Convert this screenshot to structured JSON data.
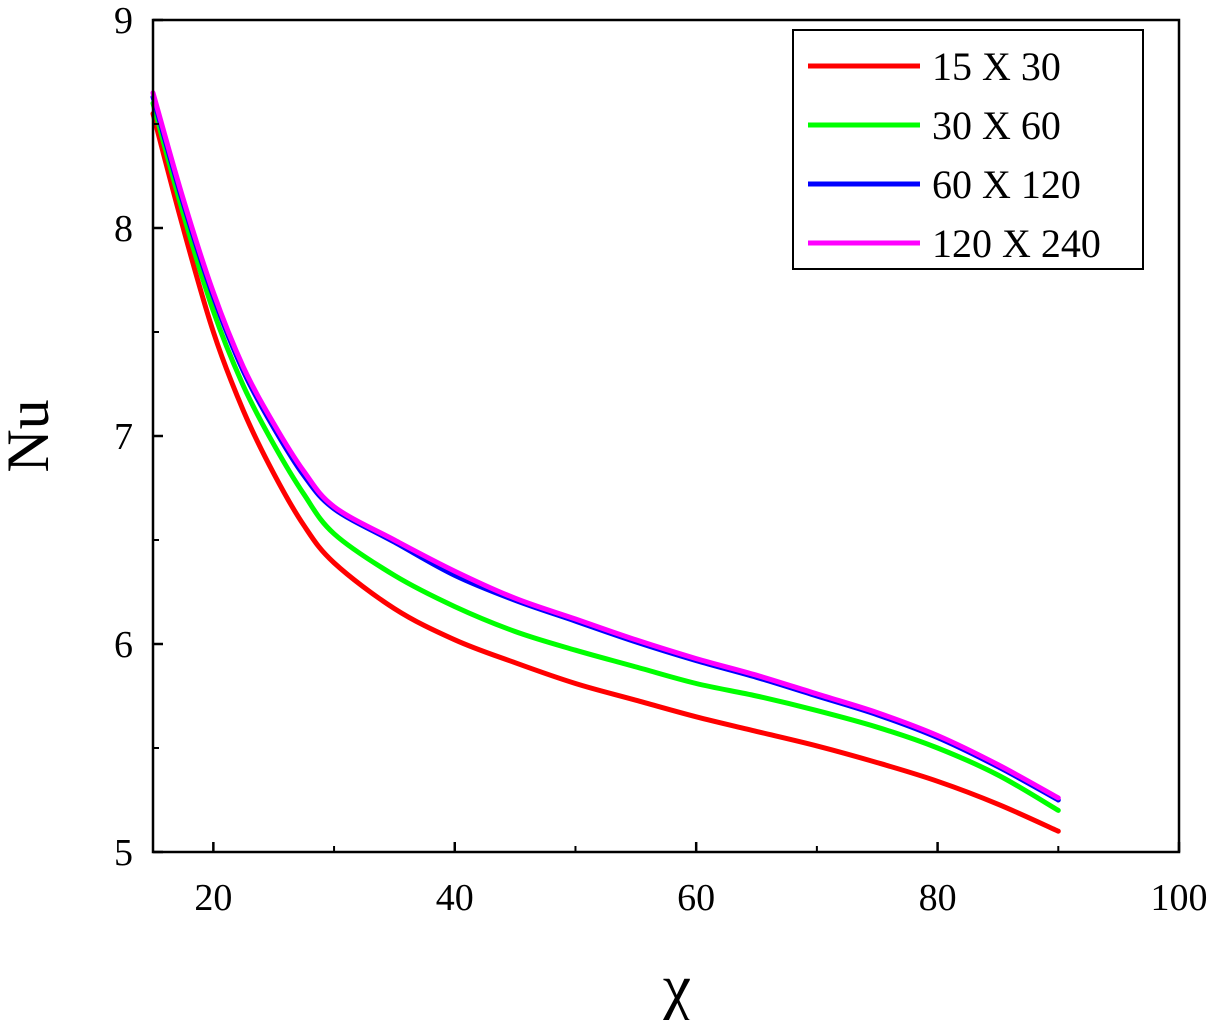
{
  "chart_data": {
    "type": "line",
    "title": "",
    "xlabel": "χ",
    "ylabel": "Nu",
    "xlim": [
      15,
      100
    ],
    "ylim": [
      5,
      9
    ],
    "x_ticks": [
      20,
      40,
      60,
      80,
      100
    ],
    "x_tick_labels": [
      "20",
      "40",
      "60",
      "80",
      "100"
    ],
    "x_minor_ticks": [
      30,
      50,
      70,
      90
    ],
    "y_ticks": [
      5,
      6,
      7,
      8,
      9
    ],
    "y_tick_labels": [
      "5",
      "6",
      "7",
      "8",
      "9"
    ],
    "y_minor_ticks": [
      5.5,
      6.5,
      7.5,
      8.5
    ],
    "grid": false,
    "legend_position": "top-right",
    "x": [
      15,
      17.5,
      20,
      22.5,
      25,
      27.5,
      30,
      35,
      40,
      45,
      50,
      55,
      60,
      65,
      70,
      75,
      80,
      85,
      90
    ],
    "series": [
      {
        "name": "15 X 30",
        "color": "#ff0000",
        "values": [
          8.55,
          8.0,
          7.5,
          7.12,
          6.82,
          6.57,
          6.39,
          6.17,
          6.02,
          5.91,
          5.81,
          5.73,
          5.65,
          5.58,
          5.51,
          5.43,
          5.34,
          5.23,
          5.1
        ]
      },
      {
        "name": "30 X 60",
        "color": "#00ff00",
        "values": [
          8.6,
          8.07,
          7.6,
          7.24,
          6.96,
          6.72,
          6.53,
          6.33,
          6.18,
          6.06,
          5.97,
          5.89,
          5.81,
          5.75,
          5.68,
          5.6,
          5.5,
          5.37,
          5.2
        ]
      },
      {
        "name": "60 X 120",
        "color": "#0000ff",
        "values": [
          8.63,
          8.12,
          7.67,
          7.31,
          7.04,
          6.81,
          6.65,
          6.49,
          6.33,
          6.21,
          6.11,
          6.01,
          5.92,
          5.84,
          5.75,
          5.66,
          5.55,
          5.41,
          5.25
        ]
      },
      {
        "name": "120 X 240",
        "color": "#ff00ff",
        "values": [
          8.65,
          8.14,
          7.69,
          7.33,
          7.06,
          6.83,
          6.66,
          6.5,
          6.35,
          6.22,
          6.12,
          6.02,
          5.93,
          5.85,
          5.76,
          5.67,
          5.56,
          5.42,
          5.26
        ]
      }
    ]
  }
}
